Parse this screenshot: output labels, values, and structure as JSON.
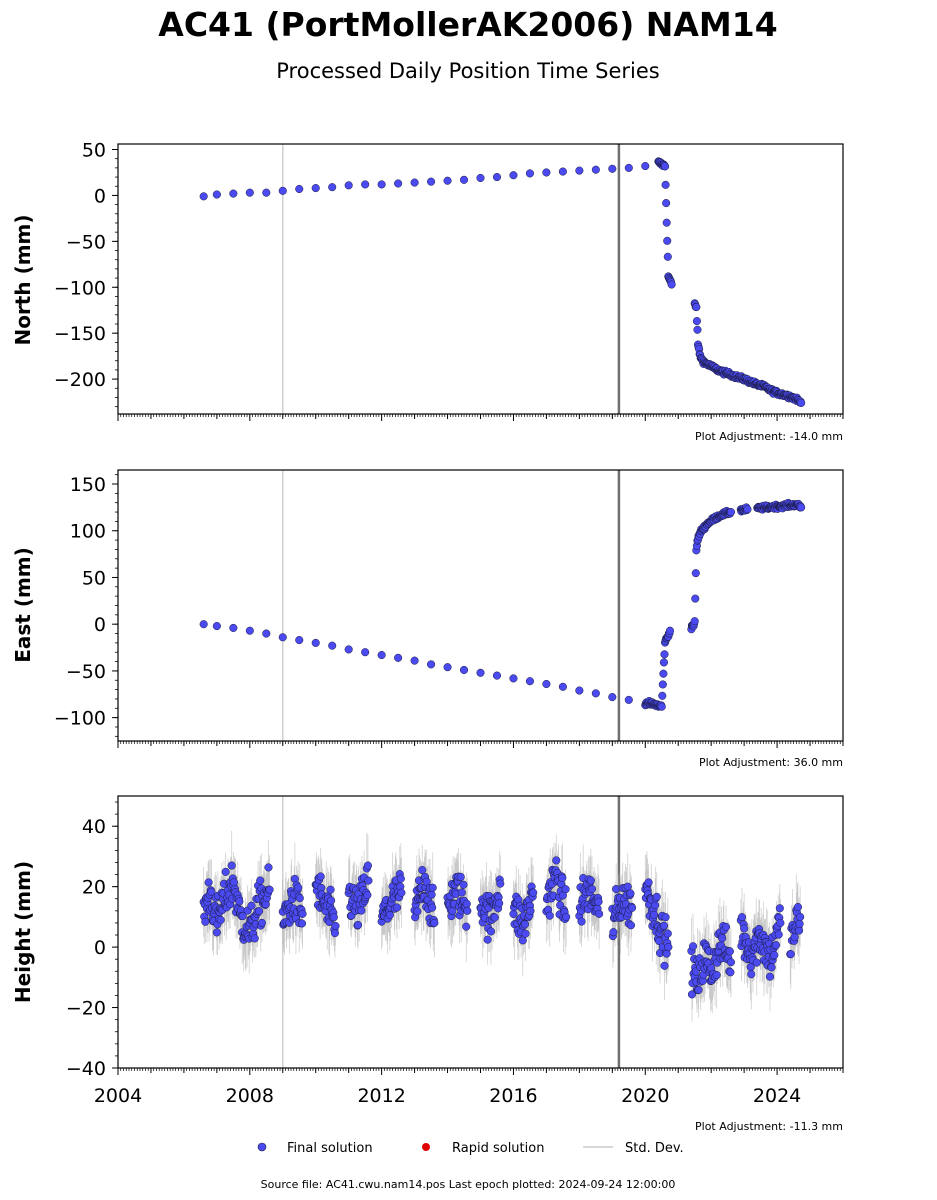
{
  "figure": {
    "title": "AC41 (PortMollerAK2006) NAM14",
    "subtitle": "Processed Daily Position Time Series",
    "source_note": "Source file: AC41.cwu.nam14.pos  Last epoch plotted: 2024-09-24 12:00:00",
    "legend": {
      "items": [
        {
          "label": "Final solution",
          "kind": "marker",
          "color": "#4a4af0"
        },
        {
          "label": "Rapid solution",
          "kind": "marker",
          "color": "#e00000"
        },
        {
          "label": "Std. Dev.",
          "kind": "line",
          "color": "#cccccc"
        }
      ],
      "placement": "bottom-center"
    },
    "colors": {
      "final": "#4a4af0",
      "marker_edge": "#1a1a40",
      "stddev": "#b0b0b0",
      "event_light": "#d0d0d0",
      "event_dark": "#707070"
    }
  },
  "chart_data": [
    {
      "type": "scatter",
      "ylabel": "North (mm)",
      "adjustment_note": "Plot Adjustment: -14.0 mm",
      "xlim": [
        2004.0,
        2026.0
      ],
      "ylim": [
        -238,
        56
      ],
      "yticks": [
        50,
        0,
        -50,
        -100,
        -150,
        -200
      ],
      "ytick_labels": [
        "50",
        "0",
        "−50",
        "−100",
        "−150",
        "−200"
      ],
      "event_lines": [
        {
          "x": 2009.0,
          "style": "light"
        },
        {
          "x": 2019.2,
          "style": "dark"
        }
      ],
      "series": [
        {
          "x": [
            2006.6,
            2007.0,
            2007.5,
            2008.0,
            2008.5,
            2009.0,
            2009.5,
            2010.0,
            2010.5,
            2011.0,
            2011.5,
            2012.0,
            2012.5,
            2013.0,
            2013.5,
            2014.0,
            2014.5,
            2015.0,
            2015.5,
            2016.0,
            2016.5,
            2017.0,
            2017.5,
            2018.0,
            2018.5,
            2019.0,
            2019.5,
            2020.0,
            2020.4,
            2020.6,
            2020.7,
            2020.8,
            2021.5,
            2021.55,
            2021.6,
            2021.65,
            2021.7,
            2021.8,
            2022.0,
            2022.2,
            2022.4,
            2022.6,
            2022.8,
            2023.0,
            2023.2,
            2023.4,
            2023.6,
            2023.8,
            2024.0,
            2024.2,
            2024.4,
            2024.6,
            2024.73
          ],
          "y": [
            -1,
            1,
            2,
            3,
            3,
            5,
            7,
            8,
            9,
            11,
            12,
            12,
            13,
            14,
            15,
            16,
            17,
            19,
            20,
            22,
            24,
            25,
            26,
            27,
            28,
            29,
            30,
            32,
            36,
            32,
            -88,
            -97,
            -118,
            -122,
            -162,
            -172,
            -178,
            -182,
            -186,
            -190,
            -193,
            -195,
            -198,
            -200,
            -203,
            -206,
            -208,
            -212,
            -215,
            -217,
            -219,
            -222,
            -226
          ],
          "err": [
            3,
            3,
            3,
            3,
            3,
            3,
            3,
            3,
            3,
            3,
            3,
            3,
            3,
            3,
            3,
            3,
            3,
            3,
            3,
            3,
            3,
            3,
            3,
            3,
            3,
            3,
            3,
            3,
            3,
            3,
            3,
            3,
            3,
            3,
            3,
            3,
            3,
            3,
            3,
            3,
            3,
            3,
            3,
            3,
            3,
            3,
            3,
            3,
            3,
            3,
            3,
            3,
            3
          ]
        }
      ]
    },
    {
      "type": "scatter",
      "ylabel": "East (mm)",
      "adjustment_note": "Plot Adjustment: 36.0 mm",
      "xlim": [
        2004.0,
        2026.0
      ],
      "ylim": [
        -125,
        165
      ],
      "yticks": [
        150,
        100,
        50,
        0,
        -50,
        -100
      ],
      "ytick_labels": [
        "150",
        "100",
        "50",
        "0",
        "−50",
        "−100"
      ],
      "event_lines": [
        {
          "x": 2009.0,
          "style": "light"
        },
        {
          "x": 2019.2,
          "style": "dark"
        }
      ],
      "series": [
        {
          "x": [
            2006.6,
            2007.0,
            2007.5,
            2008.0,
            2008.5,
            2009.0,
            2009.5,
            2010.0,
            2010.5,
            2011.0,
            2011.5,
            2012.0,
            2012.5,
            2013.0,
            2013.5,
            2014.0,
            2014.5,
            2015.0,
            2015.5,
            2016.0,
            2016.5,
            2017.0,
            2017.5,
            2018.0,
            2018.5,
            2019.0,
            2019.5,
            2020.0,
            2020.3,
            2020.5,
            2020.6,
            2020.7,
            2020.75,
            2021.4,
            2021.5,
            2021.55,
            2021.6,
            2021.7,
            2021.9,
            2022.1,
            2022.3,
            2022.6,
            2022.9,
            2023.1,
            2023.4,
            2023.7,
            2024.0,
            2024.3,
            2024.6,
            2024.73
          ],
          "y": [
            0,
            -2,
            -4,
            -7,
            -10,
            -14,
            -17,
            -20,
            -23,
            -27,
            -30,
            -33,
            -36,
            -39,
            -43,
            -46,
            -49,
            -52,
            -55,
            -58,
            -61,
            -64,
            -67,
            -71,
            -74,
            -78,
            -81,
            -84,
            -86,
            -88,
            -19,
            -12,
            -7,
            -3,
            1,
            80,
            92,
            100,
            108,
            113,
            117,
            120,
            122,
            123,
            124,
            125,
            126,
            127,
            128,
            125
          ],
          "err": [
            3,
            3,
            3,
            3,
            3,
            3,
            3,
            3,
            3,
            3,
            3,
            3,
            3,
            3,
            3,
            3,
            3,
            3,
            3,
            3,
            3,
            3,
            3,
            3,
            3,
            3,
            3,
            3,
            3,
            3,
            3,
            3,
            3,
            3,
            3,
            3,
            3,
            3,
            3,
            3,
            3,
            3,
            3,
            3,
            3,
            3,
            3,
            3,
            3,
            3
          ]
        }
      ]
    },
    {
      "type": "scatter",
      "ylabel": "Height (mm)",
      "adjustment_note": "Plot Adjustment: -11.3 mm",
      "xlim": [
        2004.0,
        2026.0
      ],
      "ylim": [
        -40,
        50
      ],
      "yticks": [
        40,
        20,
        0,
        -20,
        -40
      ],
      "ytick_labels": [
        "40",
        "20",
        "0",
        "−20",
        "−40"
      ],
      "xticks": [
        2004,
        2008,
        2012,
        2016,
        2020,
        2024
      ],
      "xtick_labels": [
        "2004",
        "2008",
        "2012",
        "2016",
        "2020",
        "2024"
      ],
      "event_lines": [
        {
          "x": 2009.0,
          "style": "light"
        },
        {
          "x": 2019.2,
          "style": "dark"
        }
      ],
      "series": [
        {
          "x": [
            2006.6,
            2006.8,
            2007.0,
            2007.2,
            2007.5,
            2007.7,
            2008.0,
            2008.3,
            2008.6,
            2009.0,
            2009.3,
            2009.6,
            2010.0,
            2010.3,
            2010.6,
            2011.0,
            2011.3,
            2011.6,
            2012.0,
            2012.3,
            2012.6,
            2013.0,
            2013.3,
            2013.6,
            2014.0,
            2014.3,
            2014.6,
            2015.0,
            2015.3,
            2015.6,
            2016.0,
            2016.3,
            2016.6,
            2017.0,
            2017.3,
            2017.6,
            2018.0,
            2018.3,
            2018.6,
            2019.0,
            2019.3,
            2019.6,
            2020.0,
            2020.3,
            2020.5,
            2020.7,
            2021.4,
            2021.6,
            2021.8,
            2022.0,
            2022.3,
            2022.6,
            2022.9,
            2023.2,
            2023.5,
            2023.8,
            2024.1,
            2024.4,
            2024.7
          ],
          "y": [
            12,
            18,
            8,
            15,
            22,
            10,
            5,
            14,
            19,
            8,
            16,
            11,
            20,
            13,
            7,
            17,
            12,
            22,
            9,
            15,
            18,
            11,
            23,
            8,
            14,
            19,
            12,
            16,
            9,
            21,
            13,
            7,
            18,
            15,
            24,
            10,
            14,
            19,
            11,
            8,
            16,
            13,
            20,
            12,
            5,
            0,
            -6,
            -12,
            -3,
            -8,
            2,
            -5,
            6,
            -2,
            4,
            -4,
            8,
            2,
            10
          ],
          "err": [
            6,
            6,
            6,
            6,
            6,
            6,
            6,
            6,
            6,
            6,
            6,
            6,
            6,
            6,
            6,
            6,
            6,
            6,
            6,
            6,
            6,
            6,
            6,
            6,
            6,
            6,
            6,
            6,
            6,
            6,
            6,
            6,
            6,
            6,
            6,
            6,
            6,
            6,
            6,
            6,
            6,
            6,
            6,
            6,
            6,
            6,
            6,
            6,
            6,
            6,
            6,
            6,
            6,
            6,
            6,
            6,
            6,
            6,
            6
          ]
        }
      ]
    }
  ]
}
